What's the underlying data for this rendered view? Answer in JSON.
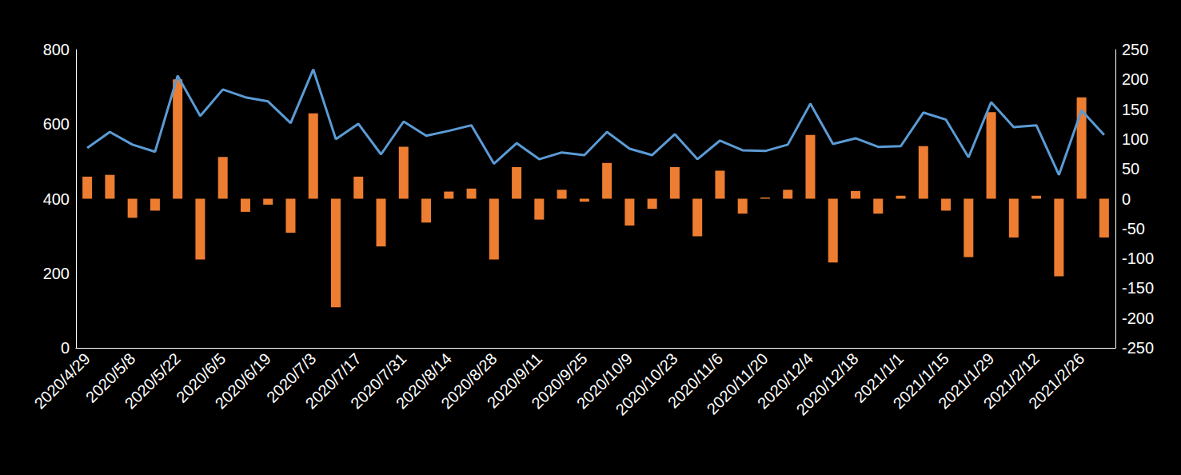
{
  "chart_data": {
    "type": "bar",
    "categories": [
      "2020/4/29",
      null,
      "2020/5/8",
      null,
      "2020/5/22",
      null,
      "2020/6/5",
      null,
      "2020/6/19",
      null,
      "2020/7/3",
      null,
      "2020/7/17",
      null,
      "2020/7/31",
      null,
      "2020/8/14",
      null,
      "2020/8/28",
      null,
      "2020/9/11",
      null,
      "2020/9/25",
      null,
      "2020/10/9",
      null,
      "2020/10/23",
      null,
      "2020/11/6",
      null,
      "2020/11/20",
      null,
      "2020/12/4",
      null,
      "2020/12/18",
      null,
      "2021/1/1",
      null,
      "2021/1/15",
      null,
      "2021/1/29",
      null,
      "2021/2/12",
      null,
      "2021/2/26",
      null
    ],
    "series": [
      {
        "type": "bar",
        "axis": "y2",
        "color": "#ed7d31",
        "values": [
          37,
          40,
          -32,
          -20,
          200,
          -102,
          70,
          -22,
          -10,
          -57,
          143,
          -182,
          37,
          -80,
          87,
          -40,
          12,
          17,
          -102,
          53,
          -35,
          15,
          -5,
          60,
          -45,
          -17,
          53,
          -63,
          47,
          -25,
          2,
          15,
          107,
          -107,
          13,
          -25,
          5,
          88,
          -20,
          -98,
          145,
          -65,
          5,
          -130,
          170,
          -65
        ]
      },
      {
        "type": "line",
        "color": "#5b9bd5",
        "values": [
          536,
          579,
          545,
          526,
          730,
          622,
          693,
          672,
          661,
          603,
          747,
          560,
          601,
          519,
          607,
          569,
          582,
          597,
          494,
          549,
          506,
          524,
          517,
          579,
          534,
          517,
          573,
          506,
          556,
          530,
          528,
          545,
          655,
          547,
          562,
          539,
          541,
          631,
          612,
          511,
          659,
          592,
          597,
          464,
          637,
          571
        ]
      }
    ],
    "ylim": [
      0,
      800
    ],
    "yticks": [
      0,
      200,
      400,
      600,
      800
    ],
    "y2lim": [
      -250,
      250
    ],
    "y2ticks": [
      -250,
      -200,
      -150,
      -100,
      -50,
      0,
      50,
      100,
      150,
      200,
      250
    ],
    "grid": false
  }
}
